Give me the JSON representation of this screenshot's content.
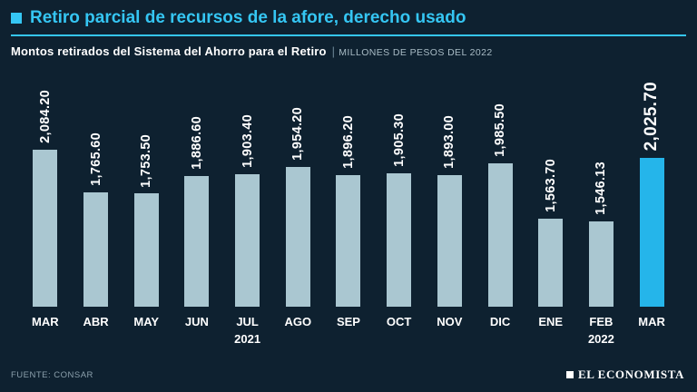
{
  "theme": {
    "background": "#0e2130",
    "accent": "#35c6f3"
  },
  "header": {
    "title": "Retiro parcial de recursos de la afore, derecho usado",
    "subtitle": "Montos retirados del Sistema del Ahorro para el Retiro",
    "separator": "|",
    "unit": "MILLONES DE PESOS DEL 2022"
  },
  "footer": {
    "source": "FUENTE: CONSAR",
    "brand": "EL ECONOMISTA"
  },
  "chart_data": {
    "type": "bar",
    "title": "Montos retirados del Sistema del Ahorro para el Retiro (millones de pesos del 2022)",
    "categories": [
      "MAR",
      "ABR",
      "MAY",
      "JUN",
      "JUL",
      "AGO",
      "SEP",
      "OCT",
      "NOV",
      "DIC",
      "ENE",
      "FEB",
      "MAR"
    ],
    "values": [
      2084.2,
      1765.6,
      1753.5,
      1886.6,
      1903.4,
      1954.2,
      1896.2,
      1905.3,
      1893.0,
      1985.5,
      1563.7,
      1546.13,
      2025.7
    ],
    "labels": [
      "2,084.20",
      "1,765.60",
      "1,753.50",
      "1,886.60",
      "1,903.40",
      "1,954.20",
      "1,896.20",
      "1,905.30",
      "1,893.00",
      "1,985.50",
      "1,563.70",
      "1,546.13",
      "2,025.70"
    ],
    "year_markers": [
      {
        "index": 4,
        "label": "2021"
      },
      {
        "index": 11,
        "label": "2022"
      }
    ],
    "highlight_index": 12,
    "bar_color": "#aac7d1",
    "highlight_color": "#25b5ea",
    "xlabel": "",
    "ylabel": "",
    "ylim": [
      900,
      2100
    ],
    "grid": false,
    "legend": "none"
  }
}
